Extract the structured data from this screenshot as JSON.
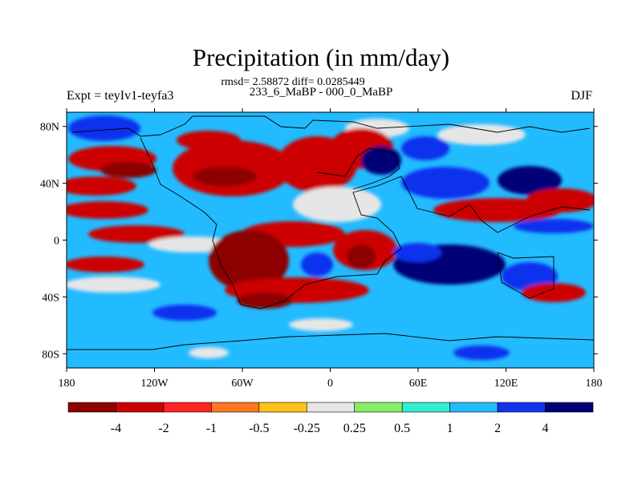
{
  "title": "Precipitation (in mm/day)",
  "stats_line": "rmsd= 2.58872 diff= 0.0285449",
  "periods_line": "233_6_MaBP - 000_0_MaBP",
  "experiment_label": "Expt = teyIv1-teyfa3",
  "season_label": "DJF",
  "axes": {
    "lat_ticks": [
      "80N",
      "40N",
      "0",
      "40S",
      "80S"
    ],
    "lon_ticks": [
      "180",
      "120W",
      "60W",
      "0",
      "60E",
      "120E",
      "180"
    ]
  },
  "colorbar": {
    "levels": [
      "-4",
      "-2",
      "-1",
      "-0.5",
      "-0.25",
      "0.25",
      "0.5",
      "1",
      "2",
      "4"
    ],
    "colors": [
      "#8c0000",
      "#cc0000",
      "#ff2222",
      "#ff7722",
      "#ffc21a",
      "#e6e6e6",
      "#88ee66",
      "#33eecc",
      "#22bbff",
      "#1133ee",
      "#000077"
    ]
  },
  "map_colors": {
    "ocean_base": "#22bbff",
    "dry_strong": "#cc0000",
    "dry_extreme": "#8c0000",
    "wet_strong": "#1133ee",
    "wet_extreme": "#000077",
    "neutral": "#e6e6e6",
    "coastline": "#000000"
  }
}
